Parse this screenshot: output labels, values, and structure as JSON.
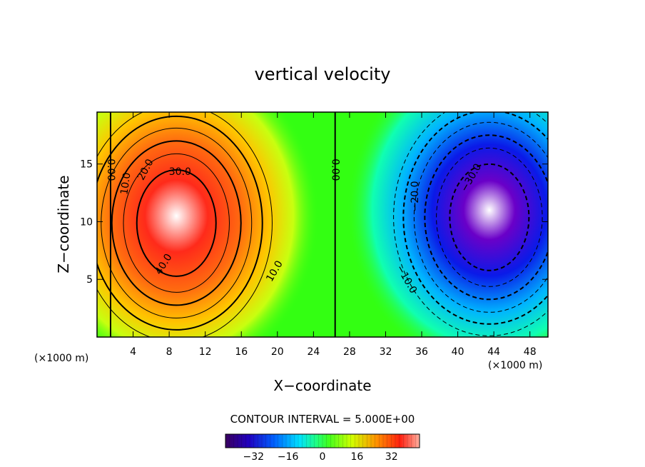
{
  "chart_data": {
    "type": "heatmap",
    "title": "vertical velocity",
    "xlabel": "X−coordinate",
    "ylabel": "Z−coordinate",
    "x_unit_left": "(×1000 m)",
    "x_unit_right": "(×1000 m)",
    "xlim": [
      0,
      50
    ],
    "ylim": [
      0,
      19.5
    ],
    "x_ticks": [
      4,
      8,
      12,
      16,
      20,
      24,
      28,
      32,
      36,
      40,
      44,
      48
    ],
    "y_ticks": [
      5,
      10,
      15
    ],
    "contour_interval_text": "CONTOUR INTERVAL = 5.000E+00",
    "contour_interval": 5.0,
    "colorbar": {
      "range": [
        -45,
        45
      ],
      "ticks": [
        -32,
        -16,
        0,
        16,
        32
      ],
      "tick_labels": [
        "−32",
        "−16",
        "0",
        "16",
        "32"
      ]
    },
    "cells": [
      {
        "sign": 1,
        "center_x": 8.8,
        "center_z": 10.5,
        "peak": 40,
        "unit": "x1000 m"
      },
      {
        "sign": -1,
        "center_x": 43.5,
        "center_z": 11.0,
        "peak": -40,
        "unit": "x1000 m"
      }
    ],
    "contour_labels": [
      {
        "text": "0.00",
        "x": 1.5,
        "z": 14.5,
        "rotate": 90
      },
      {
        "text": "10.0",
        "x": 3.2,
        "z": 13.3,
        "rotate": -82
      },
      {
        "text": "20.0",
        "x": 5.4,
        "z": 14.5,
        "rotate": -62
      },
      {
        "text": "30.0",
        "x": 9.2,
        "z": 14.3,
        "rotate": 0
      },
      {
        "text": "40.0",
        "x": 7.4,
        "z": 6.3,
        "rotate": -58
      },
      {
        "text": "10.0",
        "x": 19.7,
        "z": 5.7,
        "rotate": -60
      },
      {
        "text": "0.00",
        "x": 26.4,
        "z": 14.5,
        "rotate": 90
      },
      {
        "text": "−20.0",
        "x": 35.3,
        "z": 12.2,
        "rotate": -90
      },
      {
        "text": "−30.0",
        "x": 41.5,
        "z": 13.8,
        "rotate": -60
      },
      {
        "text": "−10.0",
        "x": 34.3,
        "z": 5.0,
        "rotate": 60
      }
    ]
  }
}
